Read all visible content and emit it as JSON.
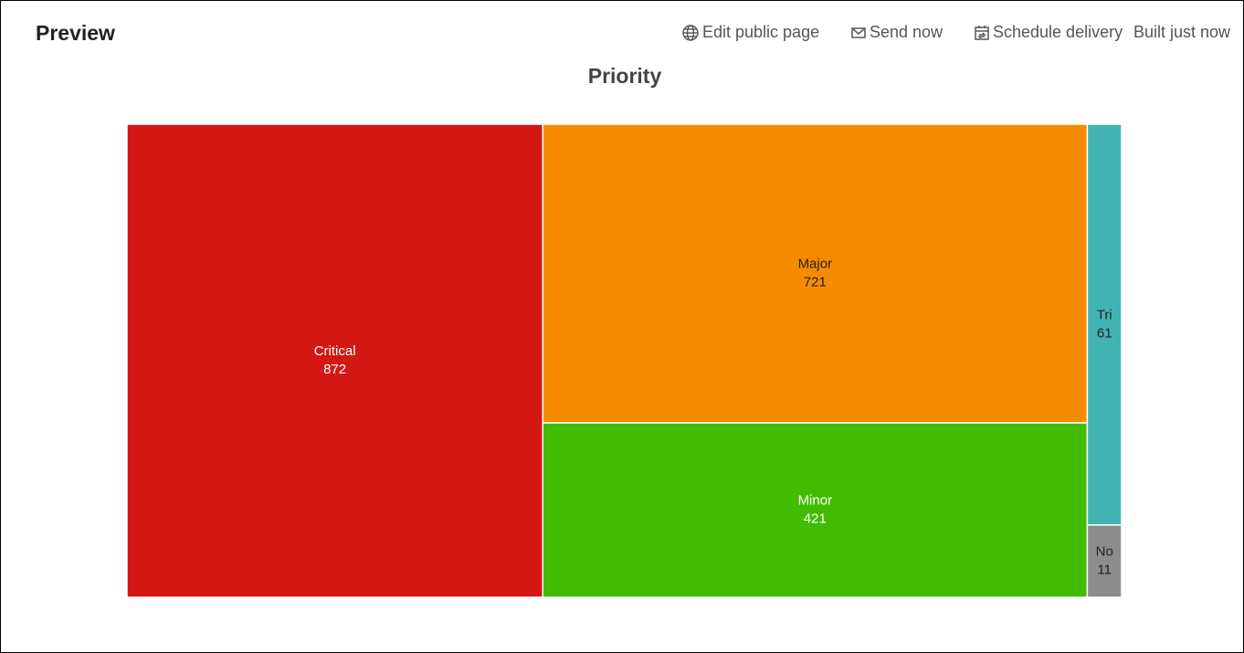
{
  "header": {
    "title": "Preview",
    "actions": [
      "Edit public page",
      "Send now",
      "Schedule delivery"
    ],
    "status": "Built just now"
  },
  "chart_data": {
    "type": "treemap",
    "title": "Priority",
    "categories": [
      "Critical",
      "Major",
      "Minor",
      "Tri",
      "No"
    ],
    "values": [
      872,
      721,
      421,
      61,
      11
    ],
    "colors": [
      "#d31713",
      "#f78b00",
      "#41bc02",
      "#41b3b3",
      "#8c8c8c"
    ],
    "label_colors": [
      "#ffffff",
      "#222222",
      "#ffffff",
      "#222222",
      "#222222"
    ]
  }
}
